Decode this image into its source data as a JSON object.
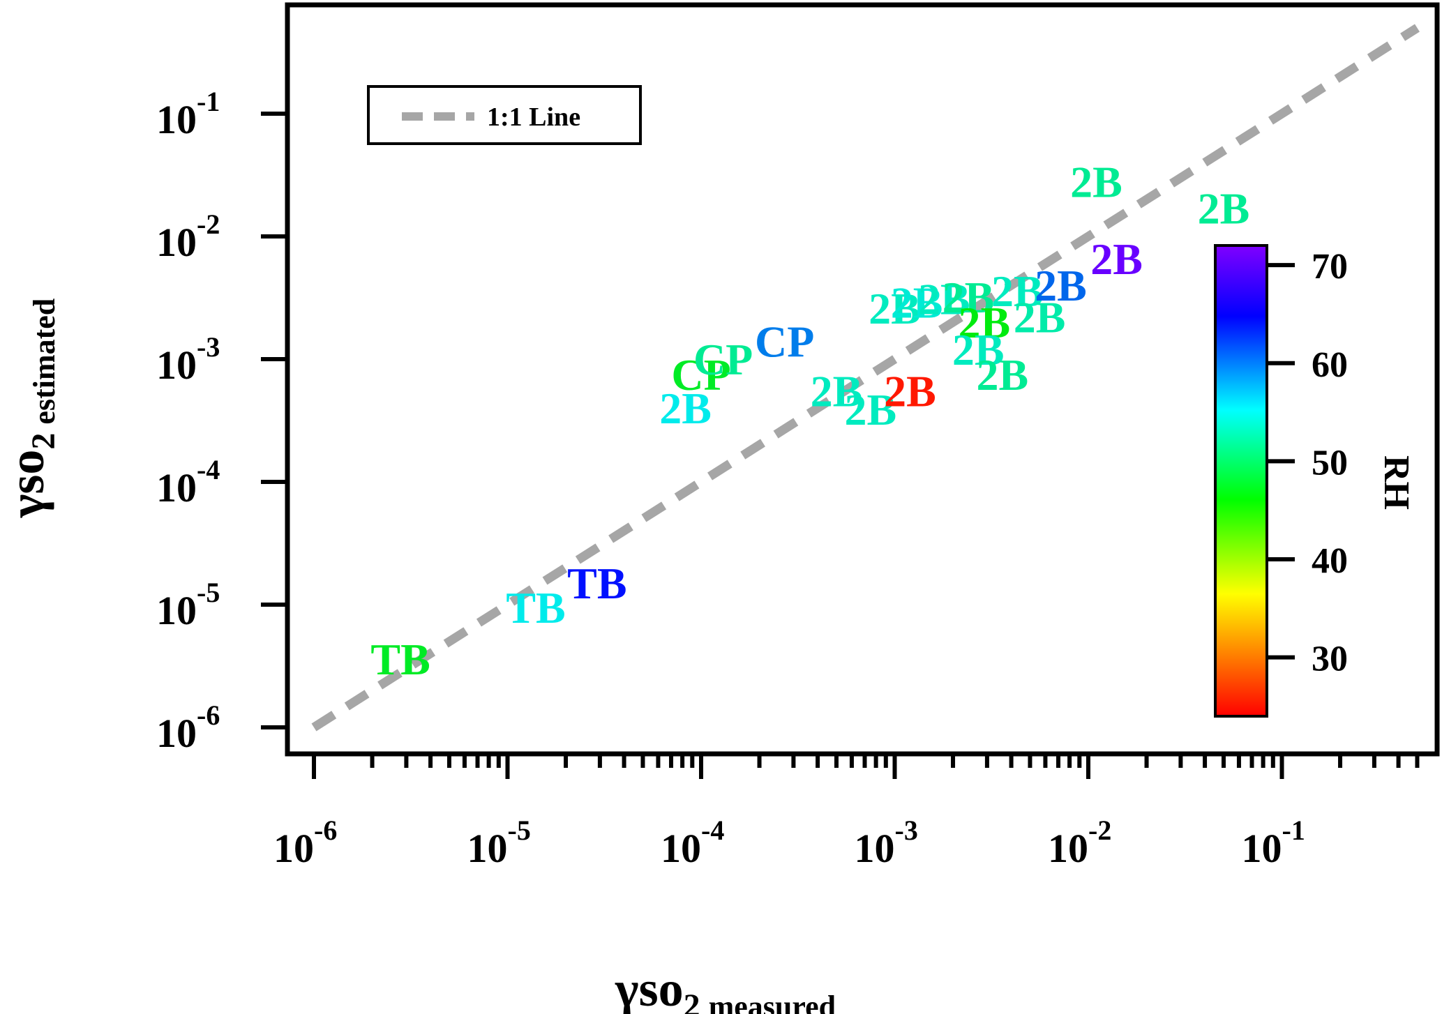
{
  "chart_data": {
    "type": "scatter",
    "scale": "log-log",
    "xlabel": {
      "main": "γso",
      "sub": "2",
      "suffix": "measured"
    },
    "ylabel": {
      "main": "γso",
      "sub": "2",
      "suffix": "estimated"
    },
    "xlim": [
      1e-06,
      0.5
    ],
    "ylim": [
      1e-06,
      0.5
    ],
    "x_ticks": [
      {
        "value": 1e-06,
        "base": "10",
        "exp": "-6"
      },
      {
        "value": 1e-05,
        "base": "10",
        "exp": "-5"
      },
      {
        "value": 0.0001,
        "base": "10",
        "exp": "-4"
      },
      {
        "value": 0.001,
        "base": "10",
        "exp": "-3"
      },
      {
        "value": 0.01,
        "base": "10",
        "exp": "-2"
      },
      {
        "value": 0.1,
        "base": "10",
        "exp": "-1"
      }
    ],
    "y_ticks": [
      {
        "value": 1e-06,
        "base": "10",
        "exp": "-6"
      },
      {
        "value": 1e-05,
        "base": "10",
        "exp": "-5"
      },
      {
        "value": 0.0001,
        "base": "10",
        "exp": "-4"
      },
      {
        "value": 0.001,
        "base": "10",
        "exp": "-3"
      },
      {
        "value": 0.01,
        "base": "10",
        "exp": "-2"
      },
      {
        "value": 0.1,
        "base": "10",
        "exp": "-1"
      }
    ],
    "grid": false,
    "legend": {
      "position": "top-left",
      "entries": [
        {
          "label": "1:1 Line",
          "style": "dashed",
          "color": "#a6a6a6"
        }
      ]
    },
    "reference_line": {
      "label": "1:1 Line",
      "from": [
        1e-06,
        1e-06
      ],
      "to": [
        0.5,
        0.5
      ]
    },
    "colorbar": {
      "label": "RH",
      "range": [
        24,
        72
      ],
      "ticks": [
        30,
        40,
        50,
        60,
        70
      ],
      "position": "right",
      "colors_bottom_to_top": [
        "#ff0000",
        "#ff8000",
        "#ffff00",
        "#00ff00",
        "#00ffff",
        "#0000ff",
        "#8000ff"
      ]
    },
    "points": [
      {
        "label": "TB",
        "x": 2.8e-06,
        "y": 3.6e-06,
        "rh": 47
      },
      {
        "label": "TB",
        "x": 1.4e-05,
        "y": 9.5e-06,
        "rh": 56
      },
      {
        "label": "TB",
        "x": 2.9e-05,
        "y": 1.5e-05,
        "rh": 66
      },
      {
        "label": "2B",
        "x": 8.3e-05,
        "y": 0.0004,
        "rh": 56
      },
      {
        "label": "CP",
        "x": 0.0001,
        "y": 0.00075,
        "rh": 47
      },
      {
        "label": "CP",
        "x": 0.00013,
        "y": 0.001,
        "rh": 52
      },
      {
        "label": "CP",
        "x": 0.00027,
        "y": 0.0014,
        "rh": 61
      },
      {
        "label": "2B",
        "x": 0.0005,
        "y": 0.00055,
        "rh": 54
      },
      {
        "label": "2B",
        "x": 0.00075,
        "y": 0.00039,
        "rh": 54
      },
      {
        "label": "2B",
        "x": 0.0012,
        "y": 0.00055,
        "rh": 25
      },
      {
        "label": "2B",
        "x": 0.001,
        "y": 0.0026,
        "rh": 54
      },
      {
        "label": "2B",
        "x": 0.0013,
        "y": 0.0029,
        "rh": 55
      },
      {
        "label": "2B",
        "x": 0.0018,
        "y": 0.0031,
        "rh": 54
      },
      {
        "label": "2B",
        "x": 0.0024,
        "y": 0.0032,
        "rh": 52
      },
      {
        "label": "2B",
        "x": 0.0029,
        "y": 0.002,
        "rh": 46
      },
      {
        "label": "2B",
        "x": 0.0027,
        "y": 0.0012,
        "rh": 54
      },
      {
        "label": "2B",
        "x": 0.0036,
        "y": 0.00075,
        "rh": 52
      },
      {
        "label": "2B",
        "x": 0.0043,
        "y": 0.0036,
        "rh": 54
      },
      {
        "label": "2B",
        "x": 0.0056,
        "y": 0.0022,
        "rh": 53
      },
      {
        "label": "2B",
        "x": 0.0072,
        "y": 0.004,
        "rh": 62
      },
      {
        "label": "2B",
        "x": 0.014,
        "y": 0.0066,
        "rh": 71
      },
      {
        "label": "2B",
        "x": 0.011,
        "y": 0.028,
        "rh": 52
      },
      {
        "label": "2B",
        "x": 0.05,
        "y": 0.017,
        "rh": 52
      }
    ]
  }
}
